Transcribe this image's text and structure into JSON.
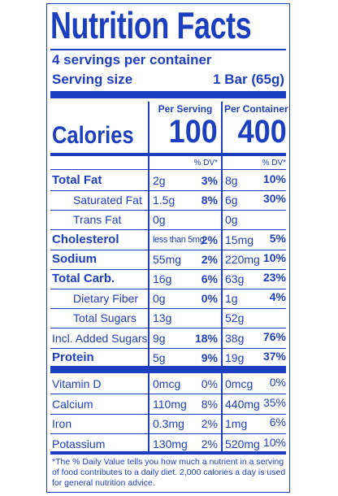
{
  "title": "Nutrition Facts",
  "servings": "4 servings per container",
  "serving_size": {
    "label": "Serving size",
    "value": "1 Bar (65g)"
  },
  "columns": [
    "Per Serving",
    "Per Container"
  ],
  "calories": {
    "label": "Calories",
    "per_serving": "100",
    "per_container": "400"
  },
  "dv_headers": [
    "% DV*",
    "% DV*"
  ],
  "nutrients": [
    {
      "name": "Total Fat",
      "serving": "2g",
      "serving_dv": "3%",
      "container": "8g",
      "container_dv": "10%"
    },
    {
      "name": "Saturated Fat",
      "serving": "1.5g",
      "serving_dv": "8%",
      "container": "6g",
      "container_dv": "30%"
    },
    {
      "name": "Trans Fat",
      "serving": "0g",
      "container": "0g"
    },
    {
      "name": "Cholesterol",
      "serving": "less than 5mg",
      "serving_dv": "2%",
      "container": "15mg",
      "container_dv": "5%"
    },
    {
      "name": "Sodium",
      "serving": "55mg",
      "serving_dv": "2%",
      "container": "220mg",
      "container_dv": "10%"
    },
    {
      "name": "Total Carb.",
      "serving": "16g",
      "serving_dv": "6%",
      "container": "63g",
      "container_dv": "23%"
    },
    {
      "name": "Dietary Fiber",
      "serving": "0g",
      "serving_dv": "0%",
      "container": "1g",
      "container_dv": "4%"
    },
    {
      "name": "Total Sugars",
      "serving": "13g",
      "container": "52g"
    },
    {
      "name": "Incl. Added Sugars",
      "serving": "9g",
      "serving_dv": "18%",
      "container": "38g",
      "container_dv": "76%"
    },
    {
      "name": "Protein",
      "serving": "5g",
      "serving_dv": "9%",
      "container": "19g",
      "container_dv": "37%"
    }
  ],
  "vitamins": [
    {
      "name": "Vitamin D",
      "serving": "0mcg",
      "serving_dv": "0%",
      "container": "0mcg",
      "container_dv": "0%"
    },
    {
      "name": "Calcium",
      "serving": "110mg",
      "serving_dv": "8%",
      "container": "440mg",
      "container_dv": "35%"
    },
    {
      "name": "Iron",
      "serving": "0.3mg",
      "serving_dv": "2%",
      "container": "1mg",
      "container_dv": "6%"
    },
    {
      "name": "Potassium",
      "serving": "130mg",
      "serving_dv": "2%",
      "container": "520mg",
      "container_dv": "10%"
    }
  ],
  "footnote": "*The % Daily Value tells you how much a nutrient in a serving of food contributes to a daily diet. 2,000 calories a day is used for general nutrition advice."
}
